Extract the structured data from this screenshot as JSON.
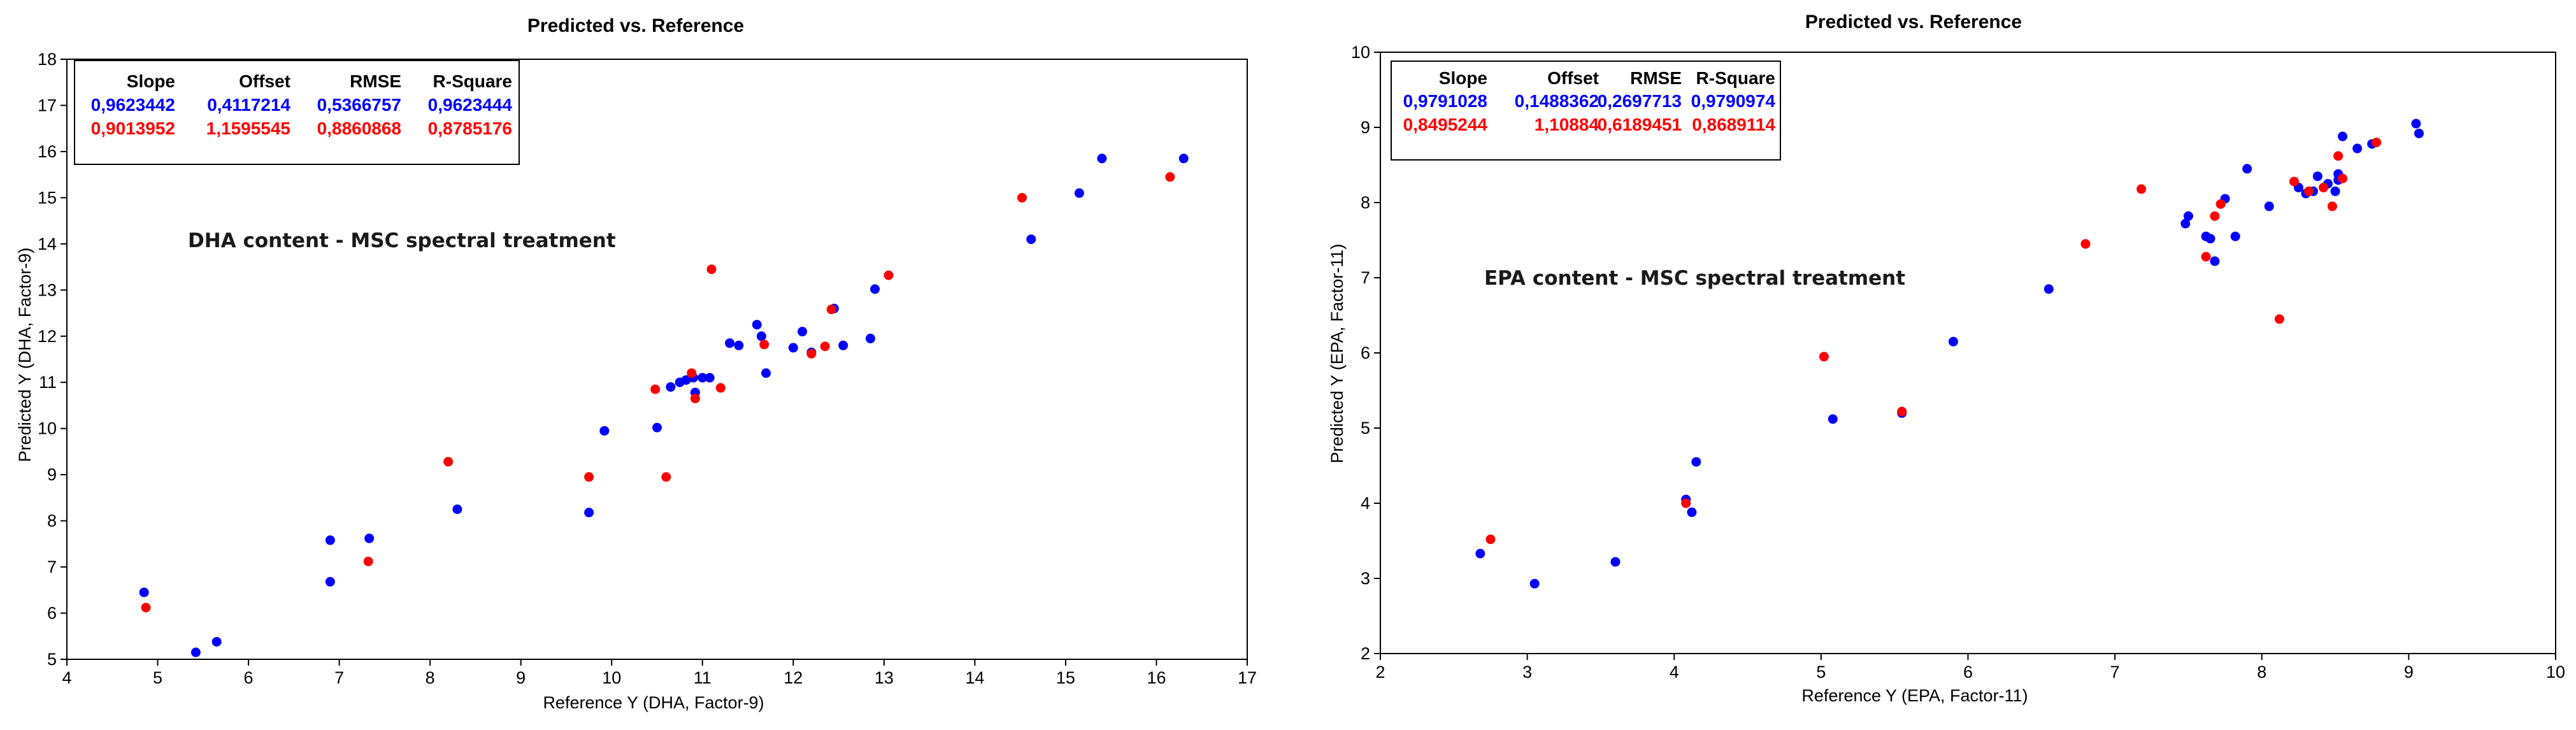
{
  "charts": [
    {
      "title": "Predicted vs. Reference",
      "xlabel": "Reference Y (DHA, Factor-9)",
      "ylabel": "Predicted Y (DHA, Factor-9)",
      "annotation": "DHA content - MSC spectral treatment",
      "stats_header": [
        "Slope",
        "Offset",
        "RMSE",
        "R-Square"
      ],
      "stats_rows": [
        {
          "color": "#0000ff",
          "values": [
            "0,9623442",
            "0,4117214",
            "0,5366757",
            "0,9623444"
          ]
        },
        {
          "color": "#ff0000",
          "values": [
            "0,9013952",
            "1,1595545",
            "0,8860868",
            "0,8785176"
          ]
        }
      ]
    },
    {
      "title": "Predicted vs. Reference",
      "xlabel": "Reference Y (EPA, Factor-11)",
      "ylabel": "Predicted Y (EPA, Factor-11)",
      "annotation": "EPA content - MSC spectral treatment",
      "stats_header": [
        "Slope",
        "Offset",
        "RMSE",
        "R-Square"
      ],
      "stats_rows": [
        {
          "color": "#0000ff",
          "values": [
            "0,9791028",
            "0,1488362",
            "0,2697713",
            "0,9790974"
          ]
        },
        {
          "color": "#ff0000",
          "values": [
            "0,8495244",
            "1,10884",
            "0,6189451",
            "0,8689114"
          ]
        }
      ]
    }
  ],
  "chart_data": [
    {
      "type": "scatter",
      "title": "Predicted vs. Reference",
      "xlabel": "Reference Y (DHA, Factor-9)",
      "ylabel": "Predicted Y (DHA, Factor-9)",
      "xlim": [
        4,
        17
      ],
      "ylim": [
        5,
        18
      ],
      "xticks": [
        4,
        5,
        6,
        7,
        8,
        9,
        10,
        11,
        12,
        13,
        14,
        15,
        16,
        17
      ],
      "yticks": [
        5,
        6,
        7,
        8,
        9,
        10,
        11,
        12,
        13,
        14,
        15,
        16,
        17,
        18
      ],
      "grid": false,
      "series": [
        {
          "color": "#0000ff",
          "points": [
            [
              4.85,
              6.45
            ],
            [
              5.42,
              5.15
            ],
            [
              5.65,
              5.38
            ],
            [
              6.9,
              7.58
            ],
            [
              6.9,
              6.68
            ],
            [
              7.33,
              7.62
            ],
            [
              8.3,
              8.25
            ],
            [
              9.75,
              8.18
            ],
            [
              9.92,
              9.95
            ],
            [
              10.5,
              10.02
            ],
            [
              10.65,
              10.9
            ],
            [
              10.75,
              11.0
            ],
            [
              10.82,
              11.05
            ],
            [
              10.9,
              11.1
            ],
            [
              10.92,
              10.78
            ],
            [
              11.0,
              11.1
            ],
            [
              11.08,
              11.1
            ],
            [
              11.3,
              11.85
            ],
            [
              11.4,
              11.8
            ],
            [
              11.6,
              12.25
            ],
            [
              11.65,
              12.0
            ],
            [
              11.7,
              11.2
            ],
            [
              12.0,
              11.75
            ],
            [
              12.1,
              12.1
            ],
            [
              12.2,
              11.65
            ],
            [
              12.45,
              12.6
            ],
            [
              12.55,
              11.8
            ],
            [
              12.85,
              11.95
            ],
            [
              12.9,
              13.02
            ],
            [
              14.62,
              14.1
            ],
            [
              15.15,
              15.1
            ],
            [
              15.4,
              15.85
            ],
            [
              16.3,
              15.85
            ]
          ]
        },
        {
          "color": "#ff0000",
          "points": [
            [
              4.87,
              6.12
            ],
            [
              7.32,
              7.12
            ],
            [
              8.2,
              9.28
            ],
            [
              9.75,
              8.95
            ],
            [
              10.48,
              10.85
            ],
            [
              10.6,
              8.95
            ],
            [
              10.88,
              11.2
            ],
            [
              10.92,
              10.65
            ],
            [
              11.1,
              13.45
            ],
            [
              11.2,
              10.88
            ],
            [
              11.68,
              11.82
            ],
            [
              12.2,
              11.62
            ],
            [
              12.35,
              11.78
            ],
            [
              12.42,
              12.58
            ],
            [
              13.05,
              13.32
            ],
            [
              14.52,
              15.0
            ],
            [
              16.15,
              15.45
            ]
          ]
        }
      ]
    },
    {
      "type": "scatter",
      "title": "Predicted vs. Reference",
      "xlabel": "Reference Y (EPA, Factor-11)",
      "ylabel": "Predicted Y (EPA, Factor-11)",
      "xlim": [
        2,
        10
      ],
      "ylim": [
        2,
        10
      ],
      "xticks": [
        2,
        3,
        4,
        5,
        6,
        7,
        8,
        9,
        10
      ],
      "yticks": [
        2,
        3,
        4,
        5,
        6,
        7,
        8,
        9,
        10
      ],
      "grid": false,
      "series": [
        {
          "color": "#0000ff",
          "points": [
            [
              2.68,
              3.33
            ],
            [
              3.05,
              2.93
            ],
            [
              3.6,
              3.22
            ],
            [
              4.08,
              4.05
            ],
            [
              4.12,
              3.88
            ],
            [
              4.15,
              4.55
            ],
            [
              5.08,
              5.12
            ],
            [
              5.55,
              5.2
            ],
            [
              5.9,
              6.15
            ],
            [
              6.55,
              6.85
            ],
            [
              7.48,
              7.72
            ],
            [
              7.5,
              7.82
            ],
            [
              7.62,
              7.55
            ],
            [
              7.65,
              7.52
            ],
            [
              7.68,
              7.22
            ],
            [
              7.75,
              8.05
            ],
            [
              7.82,
              7.55
            ],
            [
              7.9,
              8.45
            ],
            [
              8.05,
              7.95
            ],
            [
              8.25,
              8.2
            ],
            [
              8.3,
              8.12
            ],
            [
              8.35,
              8.15
            ],
            [
              8.38,
              8.35
            ],
            [
              8.45,
              8.25
            ],
            [
              8.5,
              8.15
            ],
            [
              8.52,
              8.3
            ],
            [
              8.52,
              8.38
            ],
            [
              8.55,
              8.88
            ],
            [
              8.65,
              8.72
            ],
            [
              8.75,
              8.78
            ],
            [
              9.05,
              9.05
            ],
            [
              9.07,
              8.92
            ]
          ]
        },
        {
          "color": "#ff0000",
          "points": [
            [
              2.75,
              3.52
            ],
            [
              4.08,
              4.0
            ],
            [
              5.02,
              5.95
            ],
            [
              5.55,
              5.22
            ],
            [
              6.8,
              7.45
            ],
            [
              7.18,
              8.18
            ],
            [
              7.62,
              7.28
            ],
            [
              7.68,
              7.82
            ],
            [
              7.72,
              7.98
            ],
            [
              8.12,
              6.45
            ],
            [
              8.22,
              8.28
            ],
            [
              8.32,
              8.15
            ],
            [
              8.42,
              8.2
            ],
            [
              8.48,
              7.95
            ],
            [
              8.52,
              8.62
            ],
            [
              8.55,
              8.32
            ],
            [
              8.78,
              8.8
            ]
          ]
        }
      ]
    }
  ]
}
